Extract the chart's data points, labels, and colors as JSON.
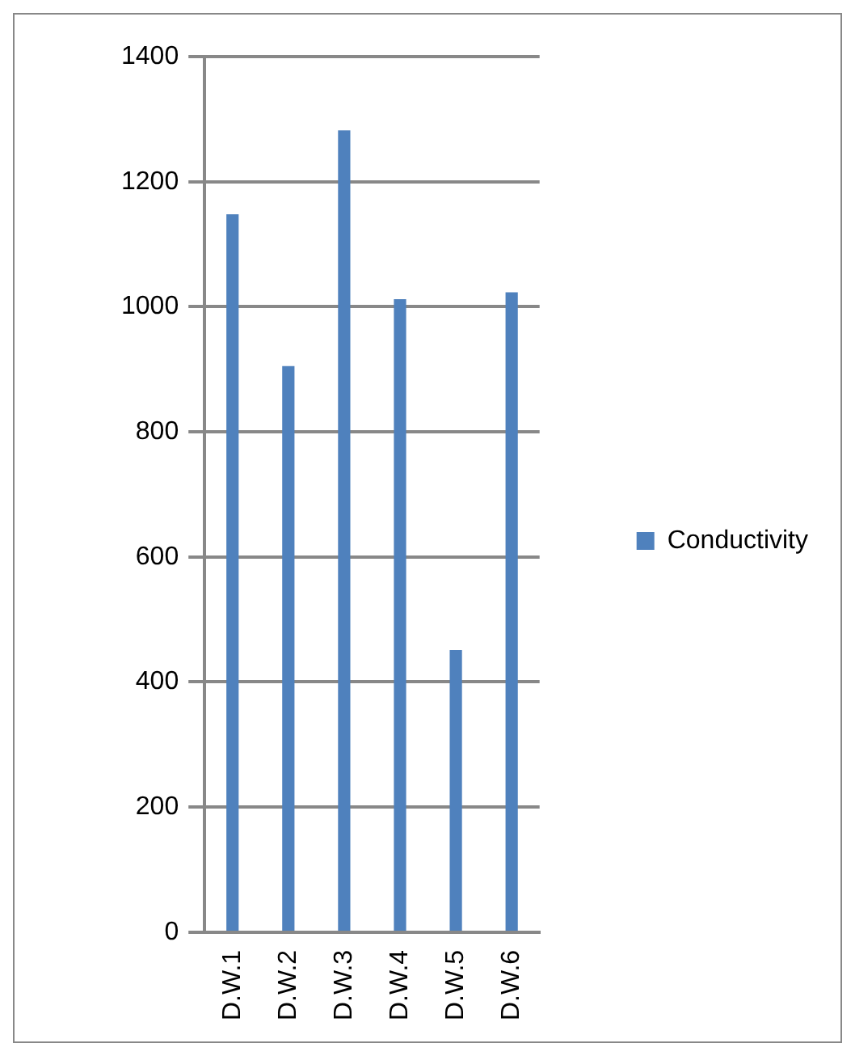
{
  "chart_data": {
    "type": "bar",
    "categories": [
      "D.W.1",
      "D.W.2",
      "D.W.3",
      "D.W.4",
      "D.W.5",
      "D.W.6"
    ],
    "series": [
      {
        "name": "Conductivity",
        "color": "#4f81bd",
        "values": [
          1148,
          905,
          1282,
          1012,
          451,
          1023
        ]
      }
    ],
    "ylim": [
      0,
      1400
    ],
    "yticks": [
      0,
      200,
      400,
      600,
      800,
      1000,
      1200,
      1400
    ],
    "grid": "y",
    "legend": "right"
  }
}
